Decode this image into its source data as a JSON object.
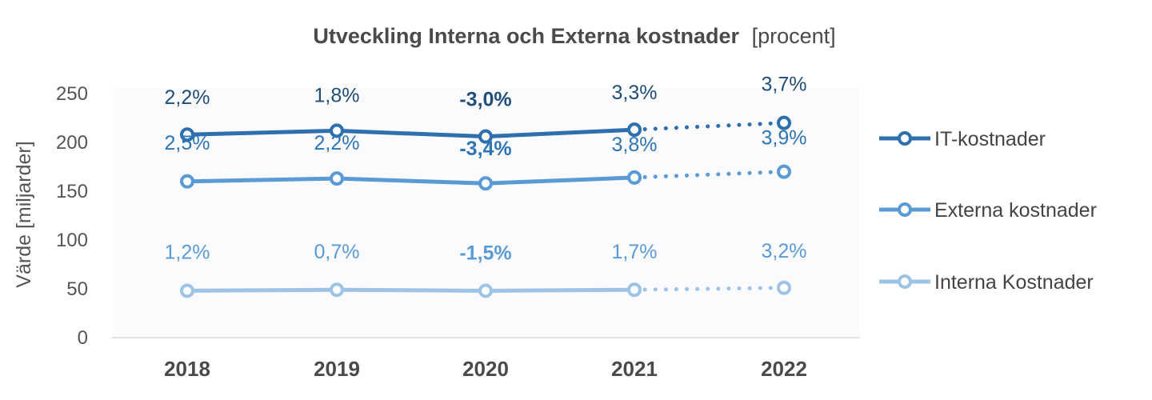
{
  "chart_data": {
    "type": "line",
    "title": "Utveckling Interna och Externa kostnader",
    "title_suffix": "[procent]",
    "xlabel": "",
    "ylabel": "Värde [miljarder]",
    "categories": [
      "2018",
      "2019",
      "2020",
      "2021",
      "2022"
    ],
    "yticks": [
      "0",
      "50",
      "100",
      "150",
      "200",
      "250"
    ],
    "ylim": [
      0,
      250
    ],
    "grid": false,
    "legend_position": "right",
    "forecast_from_index": 3,
    "series": [
      {
        "name": "IT-kostnader",
        "color": "#2e6fae",
        "values": [
          208,
          212,
          206,
          213,
          220
        ],
        "labels": [
          "2,2%",
          "1,8%",
          "-3,0%",
          "3,3%",
          "3,7%"
        ],
        "bold_label_index": 2,
        "label_color": "#1f4e79"
      },
      {
        "name": "Externa kostnader",
        "color": "#5b9bd5",
        "values": [
          160,
          163,
          158,
          164,
          170
        ],
        "labels": [
          "2,5%",
          "2,2%",
          "-3,4%",
          "3,8%",
          "3,9%"
        ],
        "bold_label_index": 2,
        "label_color": "#2e75b6"
      },
      {
        "name": "Interna Kostnader",
        "color": "#9dc3e6",
        "values": [
          48,
          49,
          48,
          49,
          51
        ],
        "labels": [
          "1,2%",
          "0,7%",
          "-1,5%",
          "1,7%",
          "3,2%"
        ],
        "bold_label_index": 2,
        "label_color": "#5b9bd5"
      }
    ]
  }
}
